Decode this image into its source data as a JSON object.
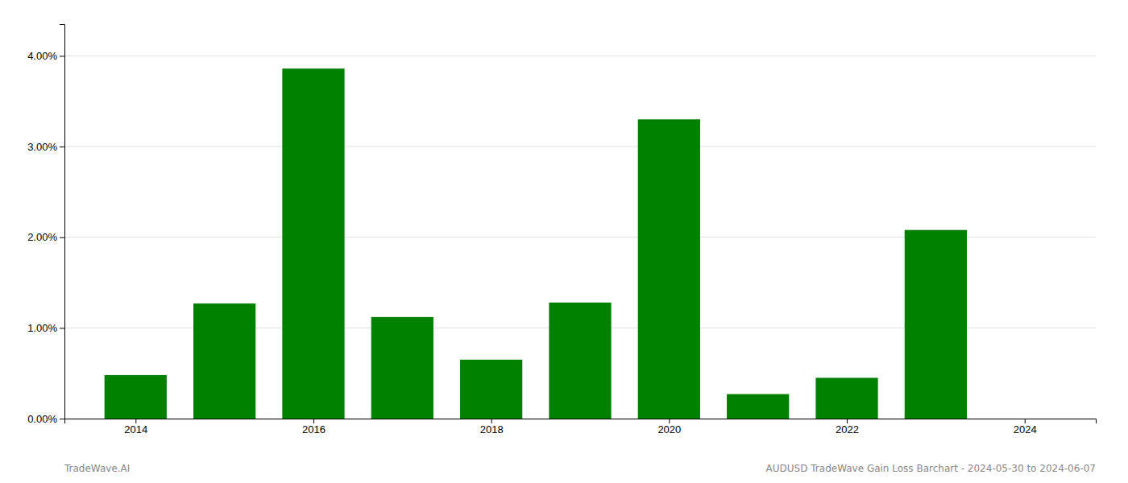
{
  "chart_data": {
    "type": "bar",
    "x": [
      2014,
      2015,
      2016,
      2017,
      2018,
      2019,
      2020,
      2021,
      2022,
      2023
    ],
    "values": [
      0.0048,
      0.0127,
      0.0386,
      0.0112,
      0.0065,
      0.0128,
      0.033,
      0.0027,
      0.0045,
      0.0208
    ],
    "color": "#008000",
    "xlim": [
      2013.2,
      2024.8
    ],
    "xticks": [
      2014,
      2016,
      2018,
      2020,
      2022,
      2024
    ],
    "ylim": [
      0.0,
      0.0435
    ],
    "yticks": [
      {
        "value": 0.0,
        "label": "0.00%"
      },
      {
        "value": 0.01,
        "label": "1.00%"
      },
      {
        "value": 0.02,
        "label": "2.00%"
      },
      {
        "value": 0.03,
        "label": "3.00%"
      },
      {
        "value": 0.04,
        "label": "4.00%"
      }
    ],
    "grid": true,
    "annotations": [
      "TradeWave.AI",
      "AUDUSD TradeWave Gain Loss Barchart - 2024-05-30 to 2024-06-07"
    ]
  }
}
